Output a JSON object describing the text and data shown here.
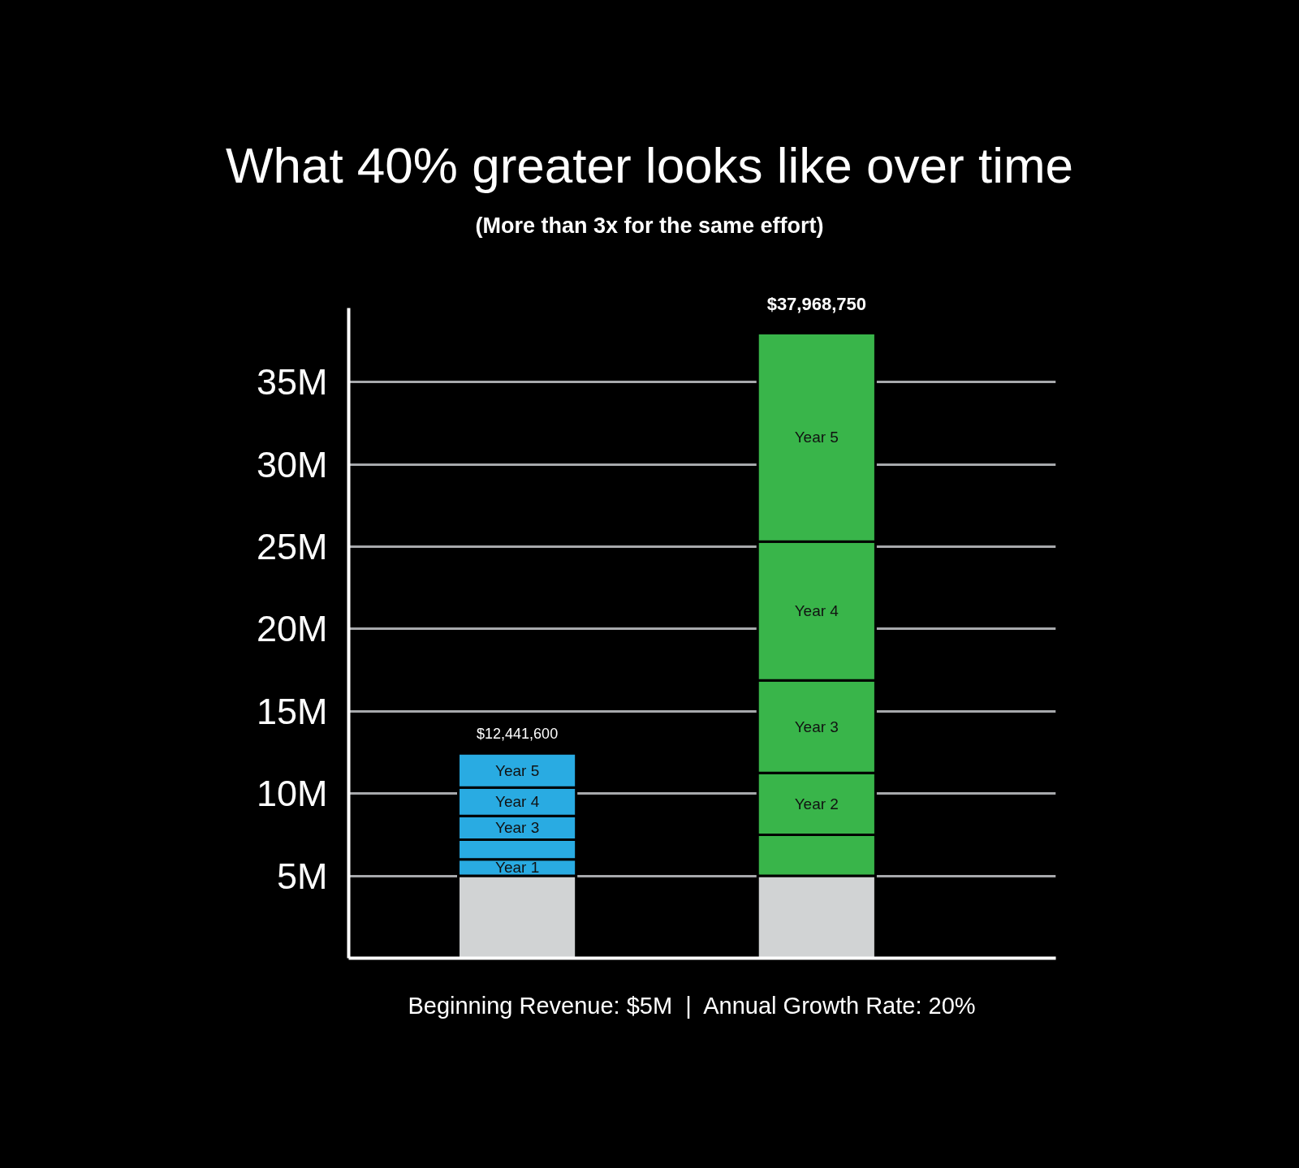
{
  "chart_data": {
    "type": "bar",
    "title": "What 40% greater looks like over time",
    "subtitle": "(More than 3x for the same effort)",
    "annotations": [
      "Beginning Revenue: $5M  |  Annual Growth Rate: 20%"
    ],
    "categories": [
      null,
      null
    ],
    "stacked": true,
    "series": [
      {
        "values": [
          5,
          5
        ],
        "colors": [
          "#d1d3d4",
          "#d1d3d4"
        ]
      },
      {
        "values": [
          1,
          2.5
        ],
        "colors": [
          "#29abe2",
          "#39b54a"
        ],
        "value_labels": [
          "Year 1",
          null
        ]
      },
      {
        "values": [
          1.2,
          3.75
        ],
        "colors": [
          "#29abe2",
          "#39b54a"
        ],
        "value_labels": [
          null,
          "Year 2"
        ]
      },
      {
        "values": [
          1.44,
          5.625
        ],
        "colors": [
          "#29abe2",
          "#39b54a"
        ],
        "value_labels": [
          "Year 3",
          "Year 3"
        ]
      },
      {
        "values": [
          1.728,
          8.4375
        ],
        "colors": [
          "#29abe2",
          "#39b54a"
        ],
        "value_labels": [
          "Year 4",
          "Year 4"
        ]
      },
      {
        "values": [
          2.0736,
          12.65625
        ],
        "colors": [
          "#29abe2",
          "#39b54a"
        ],
        "value_labels": [
          "Year 5",
          "Year 5"
        ]
      }
    ],
    "totals": [
      "$12,441,600",
      "$37,968,750"
    ],
    "ylim": [
      0,
      39.5
    ],
    "yticks": [
      {
        "value": 5,
        "label": "5M"
      },
      {
        "value": 10,
        "label": "10M"
      },
      {
        "value": 15,
        "label": "15M"
      },
      {
        "value": 20,
        "label": "20M"
      },
      {
        "value": 25,
        "label": "25M"
      },
      {
        "value": 30,
        "label": "30M"
      },
      {
        "value": 35,
        "label": "35M"
      }
    ],
    "grid": "y",
    "tick_labels": "y"
  }
}
